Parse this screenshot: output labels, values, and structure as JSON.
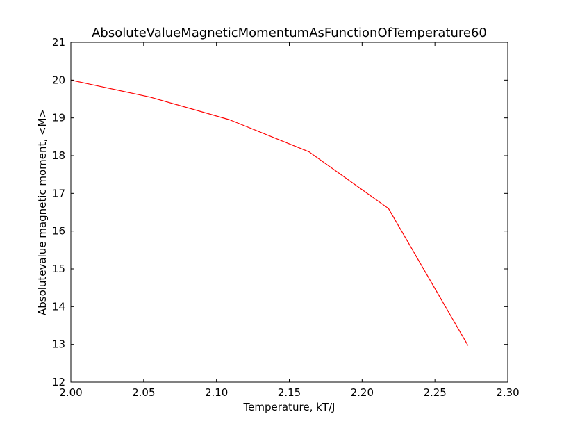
{
  "chart_data": {
    "type": "line",
    "title": "AbsoluteValueMagneticMomentumAsFunctionOfTemperature60",
    "xlabel": "Temperature, kT/J",
    "ylabel": "Absolutevalue magnetic moment, <M>",
    "xlim": [
      2.0,
      2.3
    ],
    "ylim": [
      12,
      21
    ],
    "x_ticks": [
      "2.00",
      "2.05",
      "2.10",
      "2.15",
      "2.20",
      "2.25",
      "2.30"
    ],
    "y_ticks": [
      "12",
      "13",
      "14",
      "15",
      "16",
      "17",
      "18",
      "19",
      "20",
      "21"
    ],
    "grid": false,
    "legend": "none",
    "series": [
      {
        "color": "#ff0000",
        "x": [
          2.0,
          2.0545,
          2.109,
          2.1636,
          2.2181,
          2.2727
        ],
        "y": [
          20.0,
          19.55,
          18.95,
          18.1,
          16.6,
          12.97
        ]
      }
    ]
  }
}
